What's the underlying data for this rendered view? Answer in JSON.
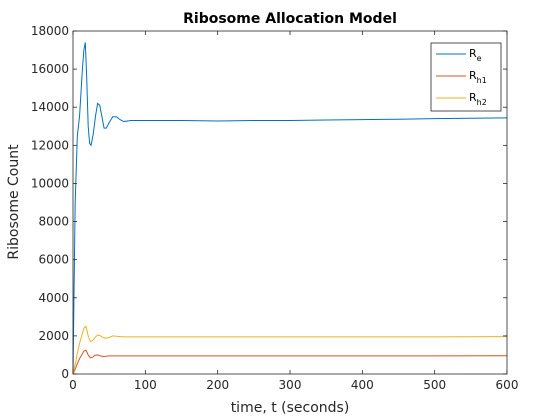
{
  "chart_data": {
    "type": "line",
    "title": "Ribosome Allocation Model",
    "xlabel": "time, t (seconds)",
    "ylabel": "Ribosome Count",
    "xlim": [
      0,
      600
    ],
    "ylim": [
      0,
      18000
    ],
    "xticks": [
      0,
      100,
      200,
      300,
      400,
      500,
      600
    ],
    "yticks": [
      0,
      2000,
      4000,
      6000,
      8000,
      10000,
      12000,
      14000,
      16000,
      18000
    ],
    "grid": false,
    "legend_position": "top-right",
    "series": [
      {
        "name": "R",
        "subscript": "e",
        "color": "#0072BD",
        "x": [
          0,
          3,
          6,
          9,
          13,
          15,
          17,
          19,
          21,
          23,
          25,
          28,
          31,
          34,
          37,
          40,
          43,
          46,
          50,
          55,
          60,
          65,
          70,
          80,
          100,
          150,
          200,
          250,
          300,
          350,
          400,
          450,
          500,
          550,
          600
        ],
        "y": [
          0,
          9000,
          12500,
          13500,
          16000,
          17000,
          17400,
          15500,
          13000,
          12100,
          12000,
          12600,
          13500,
          14200,
          14100,
          13500,
          12900,
          12900,
          13200,
          13500,
          13500,
          13350,
          13250,
          13300,
          13300,
          13300,
          13280,
          13300,
          13300,
          13330,
          13350,
          13370,
          13400,
          13420,
          13440
        ]
      },
      {
        "name": "R",
        "subscript": "h1",
        "color": "#D95319",
        "x": [
          0,
          3,
          6,
          9,
          12,
          15,
          18,
          21,
          24,
          27,
          30,
          34,
          38,
          42,
          46,
          50,
          55,
          60,
          70,
          100,
          200,
          300,
          400,
          500,
          600
        ],
        "y": [
          0,
          250,
          550,
          800,
          1000,
          1200,
          1250,
          1000,
          850,
          880,
          980,
          1000,
          950,
          920,
          930,
          950,
          950,
          950,
          950,
          950,
          950,
          950,
          950,
          950,
          960
        ]
      },
      {
        "name": "R",
        "subscript": "h2",
        "color": "#EDB120",
        "x": [
          0,
          3,
          6,
          9,
          12,
          15,
          18,
          21,
          24,
          27,
          30,
          34,
          38,
          42,
          46,
          50,
          55,
          60,
          70,
          100,
          200,
          300,
          400,
          500,
          600
        ],
        "y": [
          0,
          500,
          1100,
          1600,
          2000,
          2400,
          2500,
          2000,
          1700,
          1750,
          1900,
          2050,
          2000,
          1900,
          1880,
          1920,
          2000,
          1980,
          1950,
          1950,
          1950,
          1950,
          1950,
          1950,
          1960
        ]
      }
    ]
  }
}
